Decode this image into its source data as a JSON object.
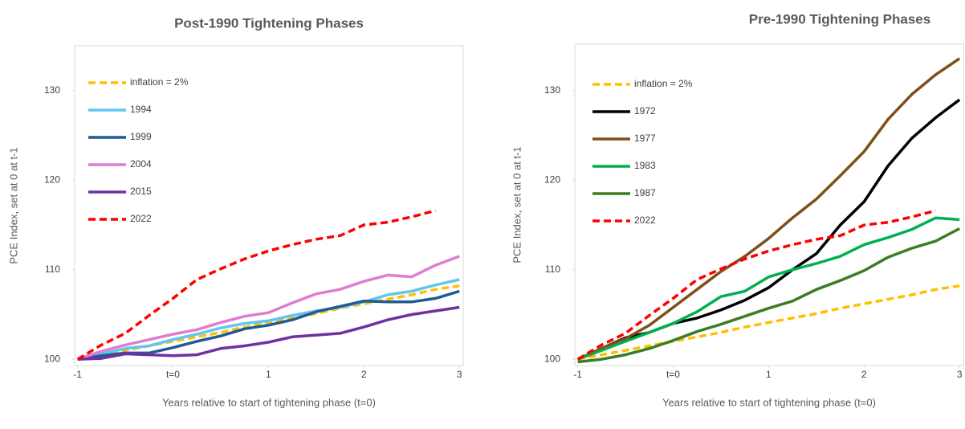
{
  "chart_data": [
    {
      "type": "line",
      "title": "Post-1990 Tightening Phases",
      "x_label": "Years relative to start of tightening phase (t=0)",
      "y_label": "PCE Index, set at 0 at t-1",
      "x": [
        -1,
        -0.75,
        -0.5,
        -0.25,
        0,
        0.25,
        0.5,
        0.75,
        1,
        1.25,
        1.5,
        1.75,
        2,
        2.25,
        2.5,
        2.75,
        3
      ],
      "xlim": [
        -1.03,
        3.04
      ],
      "xticks": [
        -1,
        {
          "value": 0,
          "label": "t=0"
        },
        1,
        2,
        3
      ],
      "ylim": [
        99.3,
        135
      ],
      "yticks": [
        100,
        110,
        120,
        130
      ],
      "legend": "top-left",
      "series": [
        {
          "name": "inflation = 2%",
          "color": "#ffc000",
          "dashed": true,
          "values": [
            100,
            100.5,
            101,
            101.5,
            102,
            102.5,
            103,
            103.6,
            104.1,
            104.6,
            105.1,
            105.7,
            106.2,
            106.7,
            107.2,
            107.8,
            108.2
          ]
        },
        {
          "name": "1994",
          "color": "#61c6f0",
          "dashed": false,
          "values": [
            100,
            100.6,
            101.2,
            101.5,
            102.2,
            102.8,
            103.5,
            104,
            104.3,
            104.9,
            105.4,
            105.8,
            106.4,
            107.2,
            107.6,
            108.3,
            108.9
          ]
        },
        {
          "name": "1999",
          "color": "#1f5a96",
          "dashed": false,
          "values": [
            100,
            100.4,
            100.7,
            100.7,
            101.3,
            102,
            102.6,
            103.4,
            103.8,
            104.4,
            105.3,
            105.9,
            106.5,
            106.4,
            106.4,
            106.8,
            107.6
          ]
        },
        {
          "name": "2004",
          "color": "#e07cd0",
          "dashed": false,
          "values": [
            100,
            100.9,
            101.6,
            102.2,
            102.8,
            103.3,
            104.1,
            104.8,
            105.2,
            106.3,
            107.3,
            107.8,
            108.7,
            109.4,
            109.2,
            110.5,
            111.5
          ]
        },
        {
          "name": "2015",
          "color": "#7030a0",
          "dashed": false,
          "values": [
            100,
            100.1,
            100.6,
            100.5,
            100.4,
            100.5,
            101.2,
            101.5,
            101.9,
            102.5,
            102.7,
            102.9,
            103.6,
            104.4,
            105,
            105.4,
            105.8
          ]
        },
        {
          "name": "2022",
          "color": "#ff0000",
          "dashed": true,
          "values": [
            100,
            101.6,
            102.9,
            104.9,
            106.8,
            108.9,
            110.1,
            111.2,
            112.1,
            112.8,
            113.4,
            113.8,
            115,
            115.3,
            115.9,
            116.6,
            null
          ]
        }
      ]
    },
    {
      "type": "line",
      "title": "Pre-1990 Tightening Phases",
      "x_label": "Years relative to start of tightening phase (t=0)",
      "y_label": "PCE Index, set at 0 at t-1",
      "x": [
        -1,
        -0.75,
        -0.5,
        -0.25,
        0,
        0.25,
        0.5,
        0.75,
        1,
        1.25,
        1.5,
        1.75,
        2,
        2.25,
        2.5,
        2.75,
        3
      ],
      "xlim": [
        -1.03,
        3.04
      ],
      "xticks": [
        -1,
        {
          "value": 0,
          "label": "t=0"
        },
        1,
        2,
        3
      ],
      "ylim": [
        99.3,
        135.2
      ],
      "yticks": [
        100,
        110,
        120,
        130
      ],
      "legend": "top-left",
      "series": [
        {
          "name": "inflation = 2%",
          "color": "#ffc000",
          "dashed": true,
          "values": [
            100,
            100.5,
            101,
            101.5,
            102,
            102.5,
            103,
            103.6,
            104.1,
            104.6,
            105.1,
            105.7,
            106.2,
            106.7,
            107.2,
            107.8,
            108.2
          ]
        },
        {
          "name": "1972",
          "color": "#000000",
          "dashed": false,
          "values": [
            100,
            101.2,
            102.4,
            103,
            104,
            104.6,
            105.5,
            106.6,
            108,
            110,
            111.8,
            115,
            117.6,
            121.6,
            124.7,
            127,
            129
          ]
        },
        {
          "name": "1977",
          "color": "#7f4f1a",
          "dashed": false,
          "values": [
            100,
            101.2,
            102.3,
            103.8,
            105.8,
            107.8,
            109.8,
            111.5,
            113.5,
            115.8,
            117.9,
            120.5,
            123.2,
            126.8,
            129.6,
            131.8,
            133.6
          ]
        },
        {
          "name": "1983",
          "color": "#00b050",
          "dashed": false,
          "values": [
            100,
            101,
            102,
            103,
            104,
            105.3,
            107,
            107.6,
            109.2,
            110,
            110.7,
            111.5,
            112.8,
            113.6,
            114.5,
            115.8,
            115.6
          ]
        },
        {
          "name": "1987",
          "color": "#3b7d23",
          "dashed": false,
          "values": [
            99.7,
            100,
            100.5,
            101.2,
            102.1,
            103.1,
            103.9,
            104.8,
            105.7,
            106.5,
            107.8,
            108.8,
            109.9,
            111.4,
            112.4,
            113.2,
            114.6
          ]
        },
        {
          "name": "2022",
          "color": "#ff0000",
          "dashed": true,
          "values": [
            100,
            101.6,
            102.9,
            104.9,
            106.8,
            108.9,
            110.1,
            111.2,
            112.1,
            112.8,
            113.4,
            113.8,
            115,
            115.3,
            115.9,
            116.6,
            null
          ]
        }
      ]
    }
  ]
}
